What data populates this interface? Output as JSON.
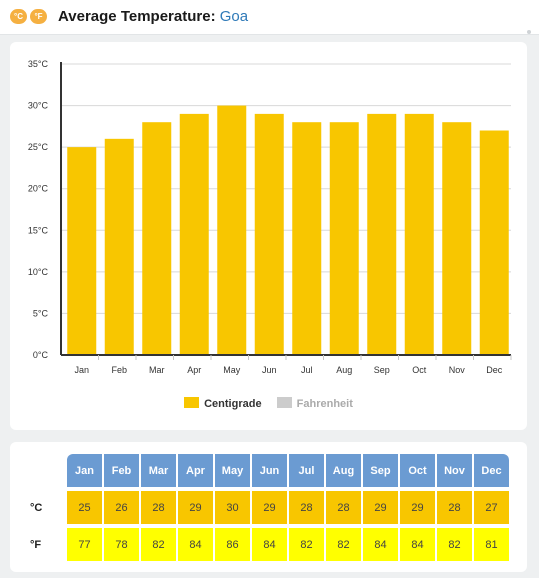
{
  "header": {
    "celsius_button_label": "°C",
    "fahrenheit_button_label": "°F",
    "title_prefix": "Average Temperature:",
    "city": "Goa"
  },
  "colors": {
    "centigrade": "#f8c600",
    "fahrenheit": "#cccccc",
    "table_header": "#6b9bd2",
    "celsius_row": "#f8c600",
    "fahrenheit_row": "#ffff00"
  },
  "chart_data": {
    "type": "bar",
    "categories": [
      "Jan",
      "Feb",
      "Mar",
      "Apr",
      "May",
      "Jun",
      "Jul",
      "Aug",
      "Sep",
      "Oct",
      "Nov",
      "Dec"
    ],
    "series": [
      {
        "name": "Centigrade",
        "values": [
          25,
          26,
          28,
          29,
          30,
          29,
          28,
          28,
          29,
          29,
          28,
          27
        ]
      }
    ],
    "yticks": [
      "0°C",
      "5°C",
      "10°C",
      "15°C",
      "20°C",
      "25°C",
      "30°C",
      "35°C"
    ],
    "ylim": [
      0,
      35
    ],
    "grid": true,
    "legend_position": "bottom",
    "legend": [
      "Centigrade",
      "Fahrenheit"
    ]
  },
  "table": {
    "months": [
      "Jan",
      "Feb",
      "Mar",
      "Apr",
      "May",
      "Jun",
      "Jul",
      "Aug",
      "Sep",
      "Oct",
      "Nov",
      "Dec"
    ],
    "celsius_label": "°C",
    "fahrenheit_label": "°F",
    "celsius": [
      "25",
      "26",
      "28",
      "29",
      "30",
      "29",
      "28",
      "28",
      "29",
      "29",
      "28",
      "27"
    ],
    "fahrenheit": [
      "77",
      "78",
      "82",
      "84",
      "86",
      "84",
      "82",
      "82",
      "84",
      "84",
      "82",
      "81"
    ]
  }
}
